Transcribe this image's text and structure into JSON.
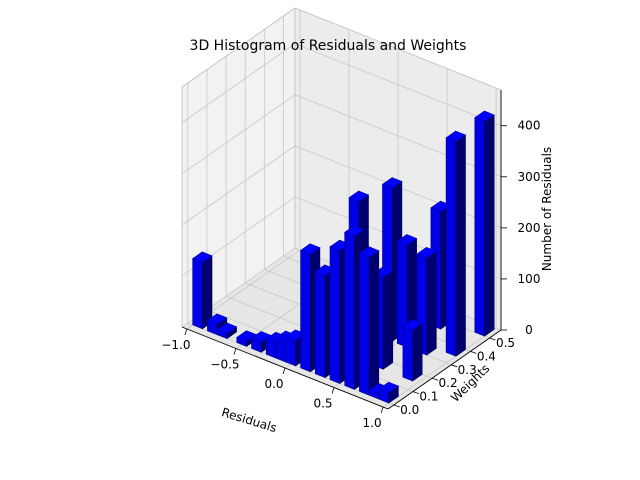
{
  "chart_data": {
    "type": "bar3d",
    "title": "3D Histogram of Residuals and Weights",
    "xlabel": "Residuals",
    "ylabel": "Weights",
    "zlabel": "Number of Residuals",
    "xlim": [
      -1.05,
      1.05
    ],
    "ylim": [
      -0.03,
      0.56
    ],
    "zlim": [
      0,
      470
    ],
    "xticks": [
      "−1.0",
      "−0.5",
      "0.0",
      "0.5",
      "1.0"
    ],
    "xtick_values": [
      -1.0,
      -0.5,
      0.0,
      0.5,
      1.0
    ],
    "yticks": [
      "0.0",
      "0.1",
      "0.2",
      "0.3",
      "0.4",
      "0.5"
    ],
    "ytick_values": [
      0.0,
      0.1,
      0.2,
      0.3,
      0.4,
      0.5
    ],
    "zticks": [
      "0",
      "100",
      "200",
      "300",
      "400"
    ],
    "ztick_values": [
      0,
      100,
      200,
      300,
      400
    ],
    "grid": true,
    "bar_color": "#0000ff",
    "bars": [
      {
        "x": -0.95,
        "y": 0.0,
        "dx": 0.1,
        "dy": 0.05,
        "z": 130
      },
      {
        "x": -0.8,
        "y": 0.0,
        "dx": 0.1,
        "dy": 0.05,
        "z": 20
      },
      {
        "x": -0.7,
        "y": 0.0,
        "dx": 0.1,
        "dy": 0.05,
        "z": 10
      },
      {
        "x": -0.5,
        "y": 0.0,
        "dx": 0.1,
        "dy": 0.05,
        "z": 10
      },
      {
        "x": -0.35,
        "y": 0.0,
        "dx": 0.1,
        "dy": 0.05,
        "z": 20
      },
      {
        "x": -0.2,
        "y": 0.0,
        "dx": 0.1,
        "dy": 0.05,
        "z": 30
      },
      {
        "x": -0.1,
        "y": 0.0,
        "dx": 0.1,
        "dy": 0.05,
        "z": 40
      },
      {
        "x": 0.0,
        "y": 0.0,
        "dx": 0.1,
        "dy": 0.05,
        "z": 50
      },
      {
        "x": 0.15,
        "y": 0.0,
        "dx": 0.1,
        "dy": 0.05,
        "z": 230
      },
      {
        "x": 0.3,
        "y": 0.0,
        "dx": 0.1,
        "dy": 0.05,
        "z": 200
      },
      {
        "x": 0.45,
        "y": 0.0,
        "dx": 0.1,
        "dy": 0.05,
        "z": 260
      },
      {
        "x": 0.6,
        "y": 0.0,
        "dx": 0.1,
        "dy": 0.05,
        "z": 300
      },
      {
        "x": 0.75,
        "y": 0.0,
        "dx": 0.1,
        "dy": 0.05,
        "z": 270
      },
      {
        "x": 0.85,
        "y": 0.0,
        "dx": 0.1,
        "dy": 0.05,
        "z": 10
      },
      {
        "x": 0.95,
        "y": 0.0,
        "dx": 0.1,
        "dy": 0.05,
        "z": 20
      },
      {
        "x": 0.3,
        "y": 0.15,
        "dx": 0.1,
        "dy": 0.05,
        "z": 190
      },
      {
        "x": 0.45,
        "y": 0.1,
        "dx": 0.1,
        "dy": 0.05,
        "z": 330
      },
      {
        "x": 0.6,
        "y": 0.15,
        "dx": 0.1,
        "dy": 0.05,
        "z": 180
      },
      {
        "x": 0.9,
        "y": 0.15,
        "dx": 0.1,
        "dy": 0.05,
        "z": 100
      },
      {
        "x": 0.4,
        "y": 0.3,
        "dx": 0.1,
        "dy": 0.05,
        "z": 300
      },
      {
        "x": 0.55,
        "y": 0.3,
        "dx": 0.1,
        "dy": 0.05,
        "z": 200
      },
      {
        "x": 0.75,
        "y": 0.3,
        "dx": 0.1,
        "dy": 0.05,
        "z": 190
      },
      {
        "x": 0.95,
        "y": 0.35,
        "dx": 0.1,
        "dy": 0.05,
        "z": 420
      },
      {
        "x": 0.6,
        "y": 0.45,
        "dx": 0.1,
        "dy": 0.05,
        "z": 230
      },
      {
        "x": 0.95,
        "y": 0.5,
        "dx": 0.1,
        "dy": 0.05,
        "z": 420
      }
    ]
  }
}
